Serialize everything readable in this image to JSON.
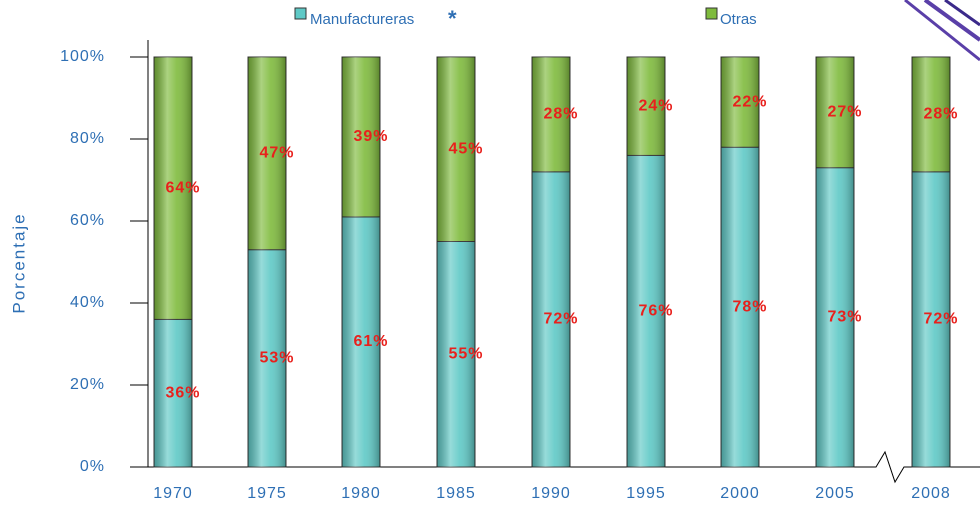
{
  "chart_data": {
    "type": "stacked_bar",
    "y_label": "Porcentaje",
    "footnote_mark": "*",
    "categories": [
      "1970",
      "1975",
      "1980",
      "1985",
      "1990",
      "1995",
      "2000",
      "2005",
      "2008"
    ],
    "series": [
      {
        "name": "Manufactureras",
        "color": "#5fc9c6",
        "values": [
          36,
          53,
          61,
          55,
          72,
          76,
          78,
          73,
          72
        ],
        "value_labels": [
          "36%",
          "53%",
          "61%",
          "55%",
          "72%",
          "76%",
          "78%",
          "73%",
          "72%"
        ]
      },
      {
        "name": "Otras",
        "color": "#7fbb3d",
        "values": [
          64,
          47,
          39,
          45,
          28,
          24,
          22,
          27,
          28
        ],
        "value_labels": [
          "64%",
          "47%",
          "39%",
          "45%",
          "28%",
          "24%",
          "22%",
          "27%",
          "28%"
        ]
      }
    ],
    "ylim": [
      0,
      100
    ],
    "yticks": [
      {
        "value": 0,
        "label": "0%"
      },
      {
        "value": 20,
        "label": "20%"
      },
      {
        "value": 40,
        "label": "40%"
      },
      {
        "value": 60,
        "label": "60%"
      },
      {
        "value": 80,
        "label": "80%"
      },
      {
        "value": 100,
        "label": "100%"
      }
    ]
  }
}
